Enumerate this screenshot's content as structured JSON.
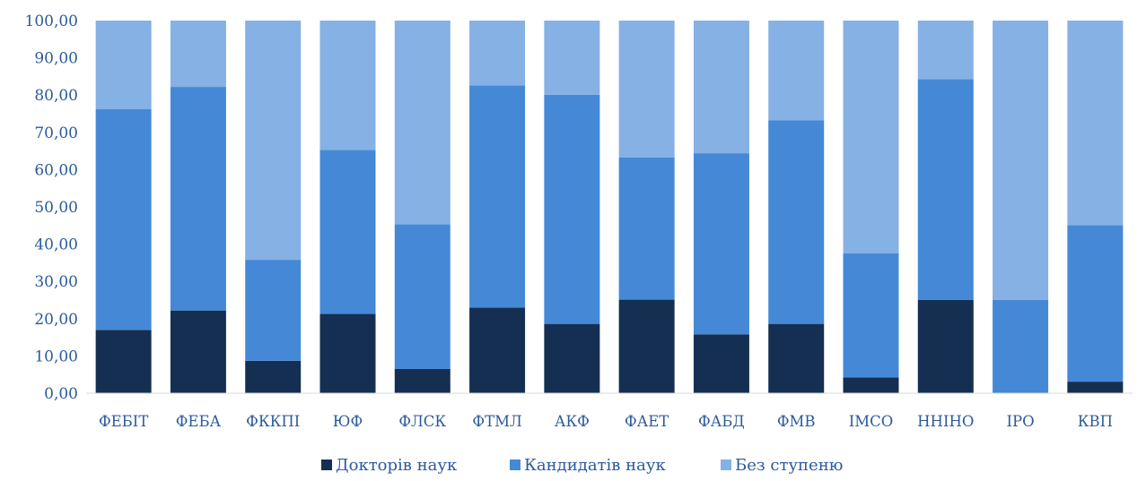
{
  "chart_data": {
    "type": "bar",
    "stacked": true,
    "categories": [
      "ФЕБІТ",
      "ФЕБА",
      "ФККПІ",
      "ЮФ",
      "ФЛСК",
      "ФТМЛ",
      "АКФ",
      "ФАЕТ",
      "ФАБД",
      "ФМВ",
      "ІМСО",
      "ННІНО",
      "ІРО",
      "КВП"
    ],
    "series": [
      {
        "name": "Докторів наук",
        "color": "#142f52",
        "values": [
          17.0,
          22.2,
          8.7,
          21.3,
          6.5,
          23.0,
          18.6,
          25.1,
          15.8,
          18.6,
          4.2,
          25.0,
          0.0,
          3.1
        ]
      },
      {
        "name": "Кандидатів наук",
        "color": "#4589d6",
        "values": [
          59.2,
          60.0,
          27.1,
          44.0,
          38.8,
          59.6,
          61.5,
          38.2,
          48.6,
          54.6,
          33.3,
          59.3,
          25.0,
          42.0
        ]
      },
      {
        "name": "Без ступеню",
        "color": "#85b1e5",
        "values": [
          23.8,
          17.8,
          64.2,
          34.7,
          54.7,
          17.4,
          19.9,
          36.7,
          35.6,
          26.8,
          62.5,
          15.7,
          75.0,
          54.9
        ]
      }
    ],
    "ylim": [
      0,
      100
    ],
    "yticks": [
      "0,00",
      "10,00",
      "20,00",
      "30,00",
      "40,00",
      "50,00",
      "60,00",
      "70,00",
      "80,00",
      "90,00",
      "100,00"
    ],
    "grid": false,
    "legend_position": "bottom"
  }
}
